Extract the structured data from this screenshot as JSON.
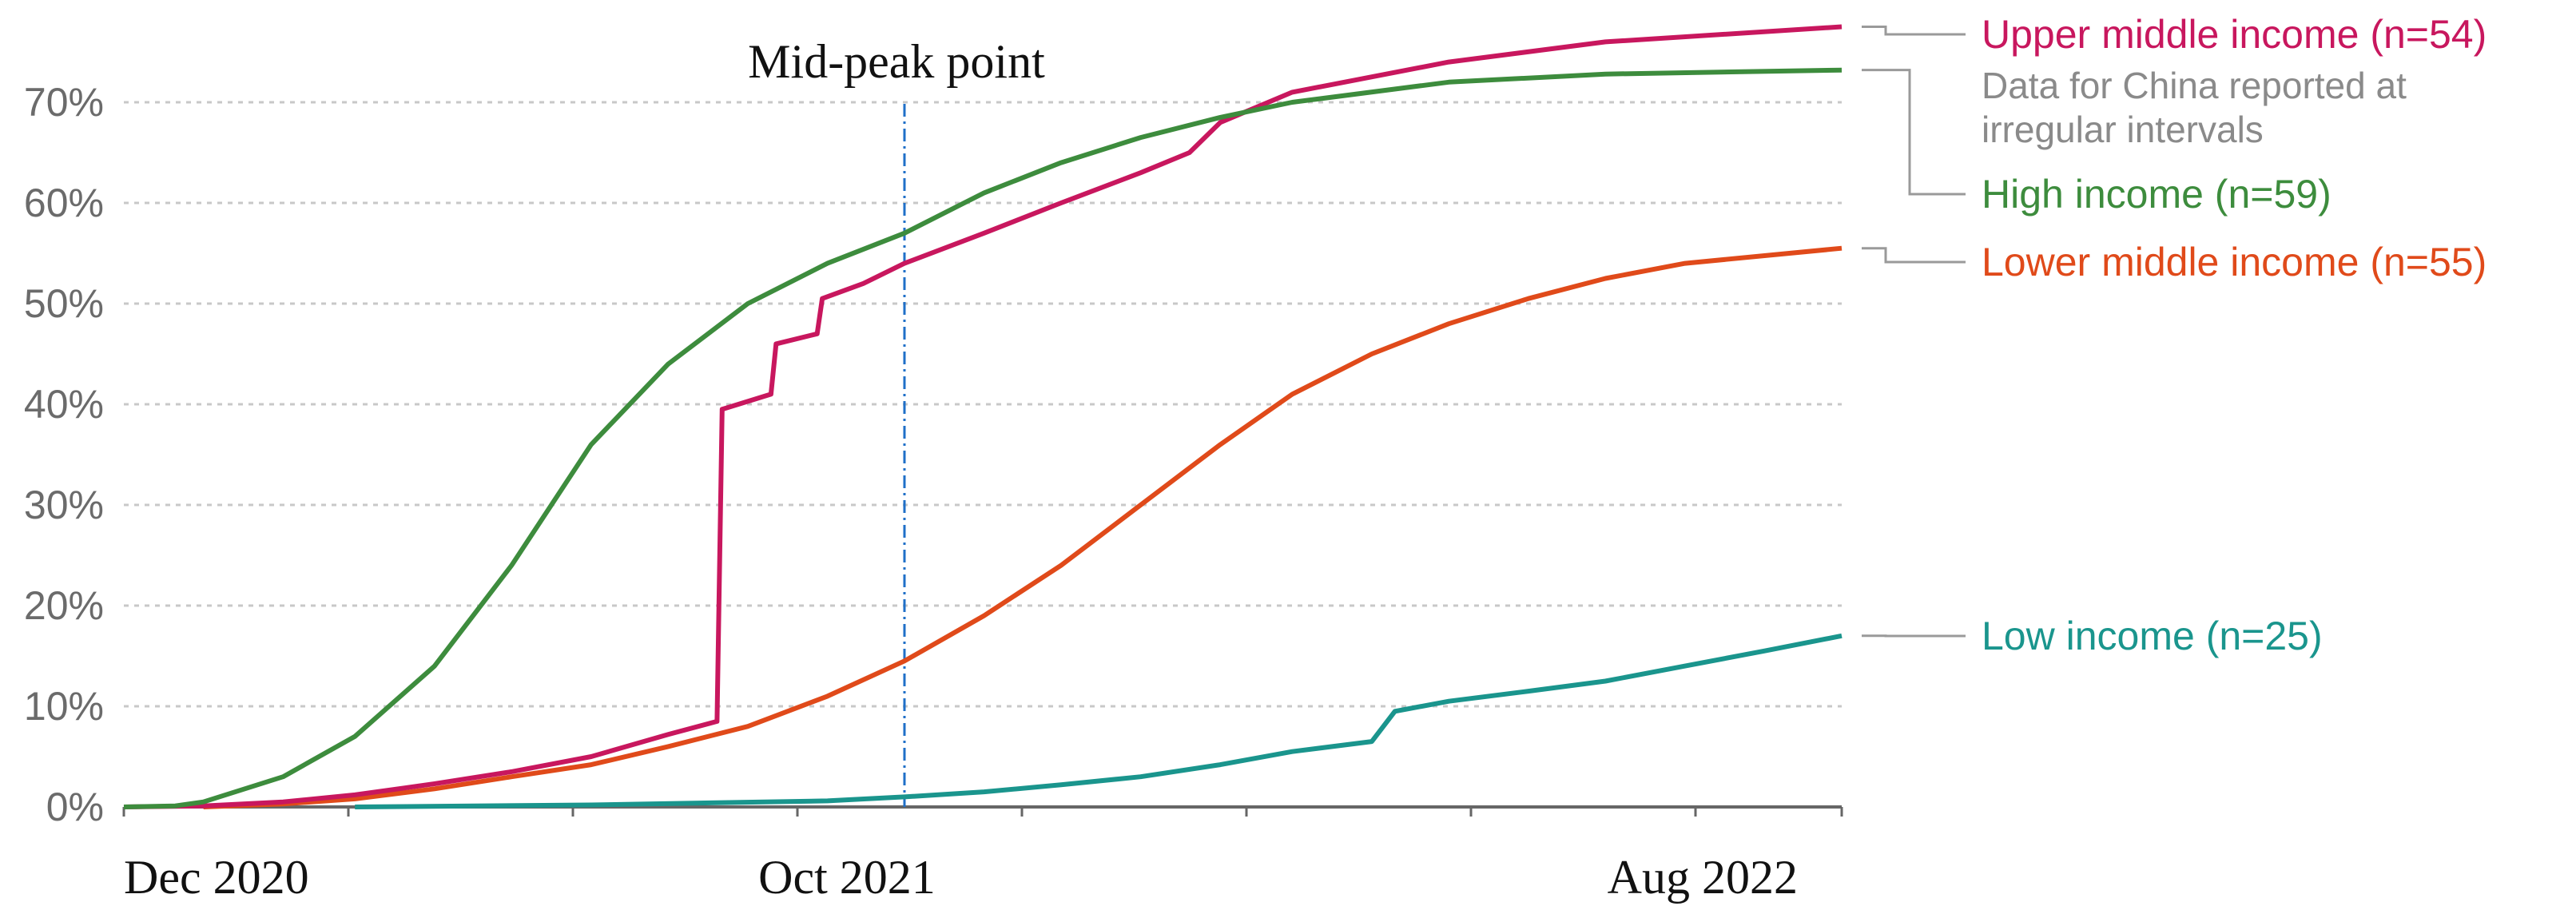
{
  "chart_data": {
    "type": "line",
    "xlabel": "",
    "ylabel": "",
    "ylim": [
      0,
      78
    ],
    "y_ticks": [
      "0%",
      "10%",
      "20%",
      "30%",
      "40%",
      "50%",
      "60%",
      "70%"
    ],
    "x_ticks": [
      "Dec 2020",
      "Oct 2021",
      "Aug 2022"
    ],
    "grid": true,
    "legend": "right",
    "annotation": {
      "label": "Mid-peak point",
      "x": "2021-10-01"
    },
    "series": [
      {
        "name": "Upper middle income",
        "n_label": "(n=54)",
        "color": "#c8175e",
        "note_lines": [
          "Data for China reported at",
          "irregular intervals"
        ],
        "points": [
          [
            "2020-12-01",
            0
          ],
          [
            "2021-01-01",
            0.1
          ],
          [
            "2021-02-01",
            0.5
          ],
          [
            "2021-03-01",
            1.2
          ],
          [
            "2021-04-01",
            2.3
          ],
          [
            "2021-05-01",
            3.5
          ],
          [
            "2021-06-01",
            5
          ],
          [
            "2021-07-01",
            7.2
          ],
          [
            "2021-07-20",
            8.5
          ],
          [
            "2021-07-22",
            39.5
          ],
          [
            "2021-08-10",
            41
          ],
          [
            "2021-08-12",
            46
          ],
          [
            "2021-08-28",
            47
          ],
          [
            "2021-08-30",
            50.5
          ],
          [
            "2021-09-15",
            52
          ],
          [
            "2021-10-01",
            54
          ],
          [
            "2021-11-01",
            57
          ],
          [
            "2021-12-01",
            60
          ],
          [
            "2022-01-01",
            63
          ],
          [
            "2022-01-20",
            65
          ],
          [
            "2022-02-01",
            68
          ],
          [
            "2022-03-01",
            71
          ],
          [
            "2022-05-01",
            74
          ],
          [
            "2022-07-01",
            76
          ],
          [
            "2022-10-01",
            77.5
          ]
        ]
      },
      {
        "name": "High income",
        "n_label": "(n=59)",
        "color": "#3d8c3d",
        "points": [
          [
            "2020-12-01",
            0
          ],
          [
            "2020-12-21",
            0.1
          ],
          [
            "2021-01-01",
            0.5
          ],
          [
            "2021-02-01",
            3
          ],
          [
            "2021-03-01",
            7
          ],
          [
            "2021-04-01",
            14
          ],
          [
            "2021-05-01",
            24
          ],
          [
            "2021-06-01",
            36
          ],
          [
            "2021-07-01",
            44
          ],
          [
            "2021-08-01",
            50
          ],
          [
            "2021-09-01",
            54
          ],
          [
            "2021-10-01",
            57
          ],
          [
            "2021-11-01",
            61
          ],
          [
            "2021-12-01",
            64
          ],
          [
            "2022-01-01",
            66.5
          ],
          [
            "2022-02-01",
            68.5
          ],
          [
            "2022-03-01",
            70
          ],
          [
            "2022-05-01",
            72
          ],
          [
            "2022-07-01",
            72.8
          ],
          [
            "2022-10-01",
            73.2
          ]
        ]
      },
      {
        "name": "Lower middle income",
        "n_label": "(n=55)",
        "color": "#e04a1a",
        "points": [
          [
            "2021-01-01",
            0
          ],
          [
            "2021-02-01",
            0.3
          ],
          [
            "2021-03-01",
            0.8
          ],
          [
            "2021-04-01",
            1.8
          ],
          [
            "2021-05-01",
            3
          ],
          [
            "2021-06-01",
            4.2
          ],
          [
            "2021-07-01",
            6
          ],
          [
            "2021-08-01",
            8
          ],
          [
            "2021-09-01",
            11
          ],
          [
            "2021-10-01",
            14.5
          ],
          [
            "2021-11-01",
            19
          ],
          [
            "2021-12-01",
            24
          ],
          [
            "2022-01-01",
            30
          ],
          [
            "2022-02-01",
            36
          ],
          [
            "2022-03-01",
            41
          ],
          [
            "2022-04-01",
            45
          ],
          [
            "2022-05-01",
            48
          ],
          [
            "2022-06-01",
            50.5
          ],
          [
            "2022-07-01",
            52.5
          ],
          [
            "2022-08-01",
            54
          ],
          [
            "2022-10-01",
            55.5
          ]
        ]
      },
      {
        "name": "Low income",
        "n_label": "(n=25)",
        "color": "#1a958d",
        "points": [
          [
            "2021-03-01",
            0
          ],
          [
            "2021-06-01",
            0.2
          ],
          [
            "2021-09-01",
            0.6
          ],
          [
            "2021-10-01",
            1
          ],
          [
            "2021-11-01",
            1.5
          ],
          [
            "2021-12-01",
            2.2
          ],
          [
            "2022-01-01",
            3
          ],
          [
            "2022-02-01",
            4.2
          ],
          [
            "2022-03-01",
            5.5
          ],
          [
            "2022-04-01",
            6.5
          ],
          [
            "2022-04-10",
            9.5
          ],
          [
            "2022-05-01",
            10.5
          ],
          [
            "2022-06-01",
            11.5
          ],
          [
            "2022-07-01",
            12.5
          ],
          [
            "2022-08-01",
            14
          ],
          [
            "2022-09-01",
            15.5
          ],
          [
            "2022-10-01",
            17
          ]
        ]
      }
    ]
  }
}
